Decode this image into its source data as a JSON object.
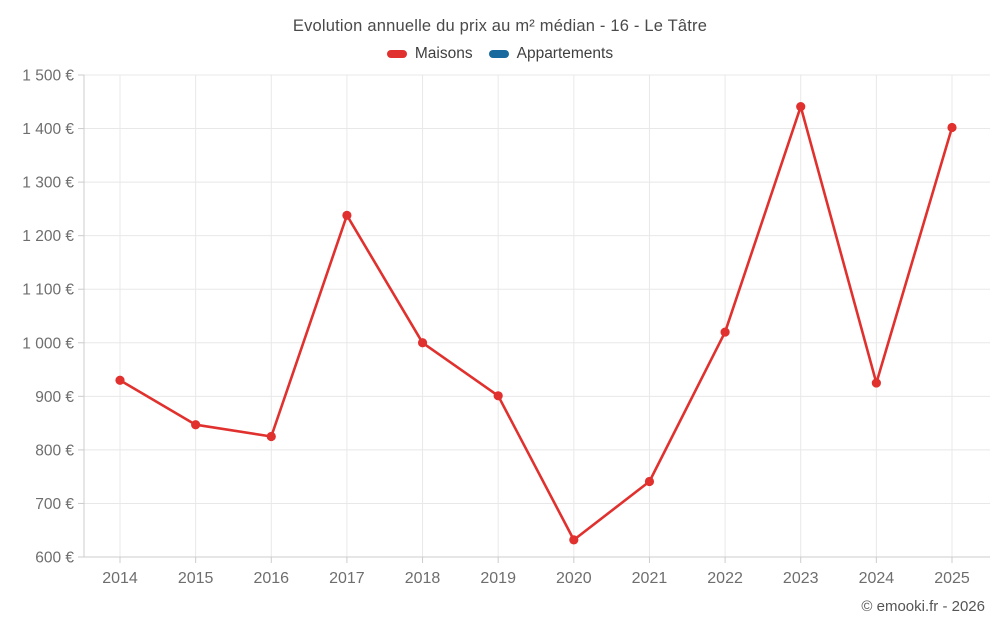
{
  "title": "Evolution annuelle du prix au m² médian - 16 - Le Tâtre",
  "footer": {
    "credit": "© emooki.fr - 2026"
  },
  "chart_data": {
    "type": "line",
    "title": "Evolution annuelle du prix au m² médian - 16 - Le Tâtre",
    "xlabel": "",
    "ylabel": "",
    "categories": [
      "2014",
      "2015",
      "2016",
      "2017",
      "2018",
      "2019",
      "2020",
      "2021",
      "2022",
      "2023",
      "2024",
      "2025"
    ],
    "series": [
      {
        "name": "Maisons",
        "color": "#e0312e",
        "values": [
          930,
          847,
          825,
          1238,
          1000,
          901,
          632,
          741,
          1020,
          1441,
          925,
          1402
        ]
      },
      {
        "name": "Appartements",
        "color": "#17699e",
        "values": []
      }
    ],
    "ylim": [
      600,
      1500
    ],
    "y_ticks": [
      600,
      700,
      800,
      900,
      1000,
      1100,
      1200,
      1300,
      1400,
      1500
    ],
    "y_tick_labels": [
      "600 €",
      "700 €",
      "800 €",
      "900 €",
      "1 000 €",
      "1 100 €",
      "1 200 €",
      "1 300 €",
      "1 400 €",
      "1 500 €"
    ],
    "grid": true,
    "legend_position": "top",
    "grid_color": "#e8e8e8",
    "axis_color": "#cccccc",
    "tick_label_color": "#6e6e6e"
  }
}
